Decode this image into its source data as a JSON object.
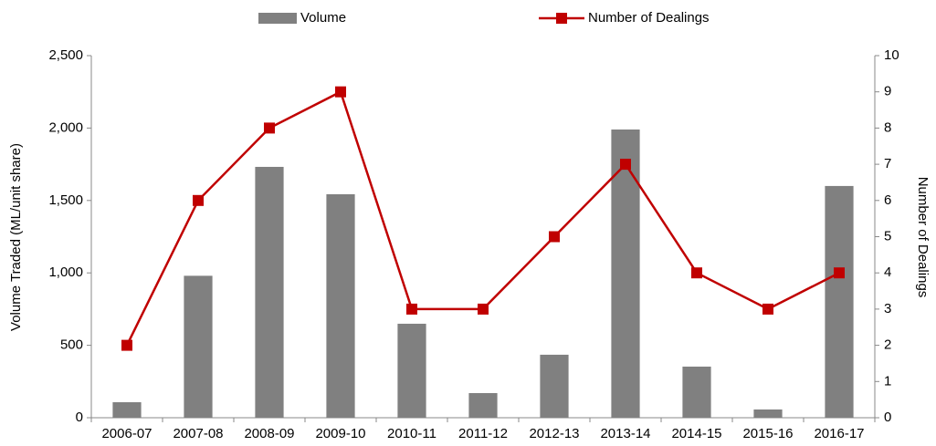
{
  "chart_data": {
    "type": "bar_line",
    "categories": [
      "2006-07",
      "2007-08",
      "2008-09",
      "2009-10",
      "2010-11",
      "2011-12",
      "2012-13",
      "2013-14",
      "2014-15",
      "2015-16",
      "2016-17"
    ],
    "series": [
      {
        "name": "Volume",
        "type": "bar",
        "color": "#808080",
        "values": [
          107,
          980,
          1732,
          1543,
          649,
          170,
          435,
          1990,
          353,
          57,
          1600
        ]
      },
      {
        "name": "Number of Dealings",
        "type": "line",
        "color": "#c00000",
        "axis": "y2",
        "values": [
          2,
          6,
          8,
          9,
          3,
          3,
          5,
          7,
          4,
          3,
          4
        ]
      }
    ],
    "y_label": "Volume Traded (ML/unit share)",
    "y2_label": "Number of Dealings",
    "ylim": [
      0,
      2500
    ],
    "yticks": [
      0,
      500,
      {
        "value": 1000,
        "label": "1,000"
      },
      {
        "value": 1500,
        "label": "1,500"
      },
      {
        "value": 2000,
        "label": "2,000"
      },
      {
        "value": 2500,
        "label": "2,500"
      }
    ],
    "y2lim": [
      0,
      10
    ],
    "y2ticks": [
      0,
      1,
      2,
      3,
      4,
      5,
      6,
      7,
      8,
      9,
      10
    ],
    "grid": false,
    "legend": "top"
  }
}
